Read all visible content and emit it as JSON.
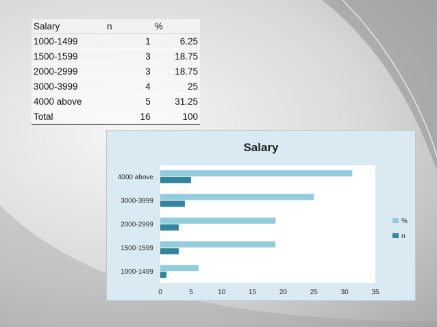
{
  "table": {
    "headers": [
      "Salary",
      "n",
      "%"
    ],
    "rows": [
      [
        "1000-1499",
        "1",
        "6.25"
      ],
      [
        "1500-1599",
        "3",
        "18.75"
      ],
      [
        "2000-2999",
        "3",
        "18.75"
      ],
      [
        "3000-3999",
        "4",
        "25"
      ],
      [
        "4000 above",
        "5",
        "31.25"
      ]
    ],
    "total": [
      "Total",
      "16",
      "100"
    ]
  },
  "chart_data": {
    "type": "bar",
    "orientation": "horizontal",
    "title": "Salary",
    "categories": [
      "1000-1499",
      "1500-1599",
      "2000-2999",
      "3000-3999",
      "4000 above"
    ],
    "series": [
      {
        "name": "%",
        "values": [
          6.25,
          18.75,
          18.75,
          25,
          31.25
        ],
        "color": "#93cddd"
      },
      {
        "name": "n",
        "values": [
          1,
          3,
          3,
          4,
          5
        ],
        "color": "#31859c"
      }
    ],
    "xlim": [
      0,
      35
    ],
    "xticks": [
      0,
      5,
      10,
      15,
      20,
      25,
      30,
      35
    ],
    "grid": false,
    "legend_position": "right",
    "background": "#daeaf2"
  }
}
